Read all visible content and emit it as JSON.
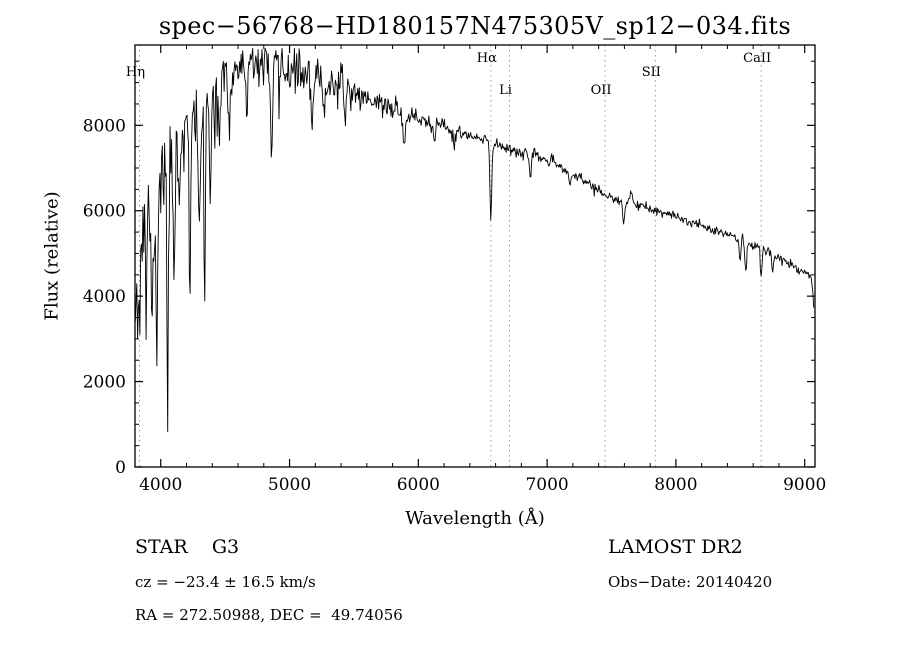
{
  "chart_data": {
    "type": "line",
    "title": "spec−56768−HD180157N475305V_sp12−034.fits",
    "xlabel": "Wavelength (Å)",
    "ylabel": "Flux (relative)",
    "xlim": [
      3800,
      9080
    ],
    "ylim": [
      0,
      9880
    ],
    "xticks": [
      4000,
      5000,
      6000,
      7000,
      8000,
      9000
    ],
    "yticks": [
      0,
      2000,
      4000,
      6000,
      8000
    ],
    "line_color": "#000000",
    "marker_line_color": "#9a9a9a",
    "line_markers": [
      {
        "label": "Hη",
        "wavelength": 3835,
        "row": 1
      },
      {
        "label": "Hα",
        "wavelength": 6563,
        "row": 0
      },
      {
        "label": "Li",
        "wavelength": 6708,
        "row": 2
      },
      {
        "label": "OII",
        "wavelength": 7450,
        "row": 2
      },
      {
        "label": "SII",
        "wavelength": 7840,
        "row": 1
      },
      {
        "label": "CaII",
        "wavelength": 8662,
        "row": 0
      }
    ],
    "wl_start": 3802,
    "wl_end": 9070,
    "sample_step": 6,
    "seed": 11,
    "continuum": [
      [
        3800,
        4300
      ],
      [
        3830,
        5300
      ],
      [
        3860,
        5700
      ],
      [
        3900,
        6200
      ],
      [
        3950,
        6500
      ],
      [
        4000,
        6900
      ],
      [
        4100,
        7500
      ],
      [
        4200,
        8000
      ],
      [
        4300,
        8400
      ],
      [
        4400,
        8750
      ],
      [
        4500,
        9150
      ],
      [
        4600,
        9350
      ],
      [
        4700,
        9420
      ],
      [
        4800,
        9450
      ],
      [
        4900,
        9380
      ],
      [
        5000,
        9300
      ],
      [
        5100,
        9220
      ],
      [
        5200,
        9120
      ],
      [
        5300,
        9000
      ],
      [
        5400,
        8880
      ],
      [
        5500,
        8760
      ],
      [
        5600,
        8640
      ],
      [
        5700,
        8520
      ],
      [
        5800,
        8400
      ],
      [
        5900,
        8280
      ],
      [
        6000,
        8150
      ],
      [
        6100,
        8030
      ],
      [
        6200,
        7930
      ],
      [
        6300,
        7830
      ],
      [
        6400,
        7740
      ],
      [
        6500,
        7650
      ],
      [
        6600,
        7560
      ],
      [
        6700,
        7470
      ],
      [
        6800,
        7360
      ],
      [
        6900,
        7280
      ],
      [
        7000,
        7190
      ],
      [
        7100,
        7020
      ],
      [
        7200,
        6860
      ],
      [
        7300,
        6680
      ],
      [
        7400,
        6480
      ],
      [
        7500,
        6280
      ],
      [
        7600,
        6160
      ],
      [
        7700,
        6120
      ],
      [
        7800,
        6030
      ],
      [
        7900,
        5940
      ],
      [
        8000,
        5850
      ],
      [
        8100,
        5750
      ],
      [
        8200,
        5660
      ],
      [
        8300,
        5560
      ],
      [
        8400,
        5460
      ],
      [
        8500,
        5340
      ],
      [
        8600,
        5190
      ],
      [
        8700,
        5060
      ],
      [
        8800,
        4910
      ],
      [
        8900,
        4730
      ],
      [
        9000,
        4570
      ],
      [
        9040,
        4490
      ],
      [
        9052,
        4440
      ],
      [
        9060,
        4200
      ],
      [
        9070,
        3850
      ]
    ],
    "noise_regions": [
      [
        3800,
        3950,
        850
      ],
      [
        3950,
        4150,
        650
      ],
      [
        4150,
        4450,
        480
      ],
      [
        4450,
        4750,
        330
      ],
      [
        4750,
        5100,
        260
      ],
      [
        5100,
        5500,
        200
      ],
      [
        5500,
        5900,
        140
      ],
      [
        5900,
        6400,
        100
      ],
      [
        6400,
        6900,
        75
      ],
      [
        6900,
        7500,
        60
      ],
      [
        7500,
        8400,
        52
      ],
      [
        8400,
        9075,
        58
      ]
    ],
    "absorption_lines": [
      [
        3835,
        2000,
        6
      ],
      [
        3889,
        2400,
        6
      ],
      [
        3933,
        3600,
        7
      ],
      [
        3968,
        3900,
        7
      ],
      [
        4054,
        5400,
        6
      ],
      [
        4102,
        2600,
        7
      ],
      [
        4144,
        1400,
        6
      ],
      [
        4227,
        4300,
        6
      ],
      [
        4300,
        2300,
        10
      ],
      [
        4340,
        5300,
        5
      ],
      [
        4383,
        2400,
        7
      ],
      [
        4455,
        1300,
        6
      ],
      [
        4531,
        1400,
        6
      ],
      [
        4668,
        1300,
        6
      ],
      [
        4861,
        2450,
        8
      ],
      [
        4920,
        900,
        6
      ],
      [
        5175,
        1100,
        10
      ],
      [
        5270,
        800,
        7
      ],
      [
        5430,
        600,
        6
      ],
      [
        5890,
        900,
        8
      ],
      [
        6122,
        450,
        6
      ],
      [
        6280,
        350,
        6
      ],
      [
        6563,
        1750,
        7
      ],
      [
        6870,
        450,
        8
      ],
      [
        7180,
        300,
        8
      ],
      [
        7594,
        420,
        8
      ],
      [
        8498,
        600,
        6
      ],
      [
        8542,
        750,
        6
      ],
      [
        8662,
        700,
        6
      ],
      [
        8750,
        380,
        6
      ]
    ],
    "emission_lines": [
      [
        7652,
        320,
        13
      ]
    ]
  },
  "footer": {
    "class_label": "STAR    G3",
    "survey": "LAMOST DR2",
    "cz": "cz = −23.4 ± 16.5 km/s",
    "obs_date": "Obs−Date: 20140420",
    "coords": "RA = 272.50988, DEC =  49.74056"
  }
}
